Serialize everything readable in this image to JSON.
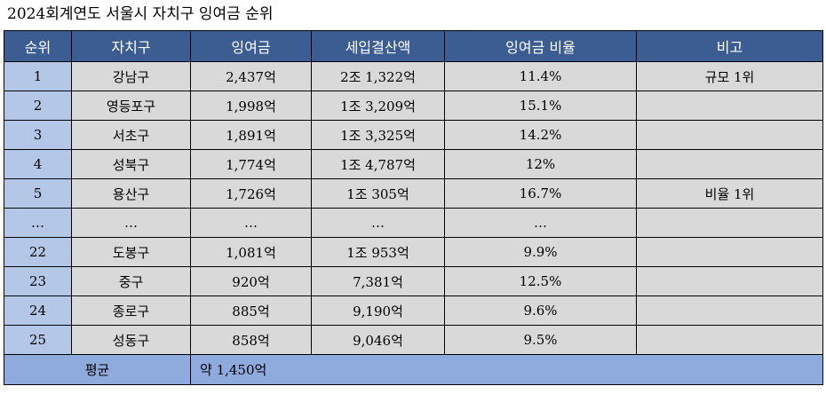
{
  "title": "2024회계연도 서울시 자치구 잉여금 순위",
  "colors": {
    "header_bg": "#3c5d91",
    "rank_bg": "#b4c7e7",
    "cell_bg": "#d9d9d9",
    "footer_bg": "#8faadc"
  },
  "table": {
    "headers": [
      "순위",
      "자치구",
      "잉여금",
      "세입결산액",
      "잉여금 비율",
      "비고"
    ],
    "rows": [
      [
        "1",
        "강남구",
        "2,437억",
        "2조 1,322억",
        "11.4%",
        "규모 1위"
      ],
      [
        "2",
        "영등포구",
        "1,998억",
        "1조 3,209억",
        "15.1%",
        ""
      ],
      [
        "3",
        "서초구",
        "1,891억",
        "1조 3,325억",
        "14.2%",
        ""
      ],
      [
        "4",
        "성북구",
        "1,774억",
        "1조 4,787억",
        "12%",
        ""
      ],
      [
        "5",
        "용산구",
        "1,726억",
        "1조 305억",
        "16.7%",
        "비율 1위"
      ],
      [
        "…",
        "…",
        "…",
        "…",
        "…",
        ""
      ],
      [
        "22",
        "도봉구",
        "1,081억",
        "1조 953억",
        "9.9%",
        ""
      ],
      [
        "23",
        "중구",
        "920억",
        "7,381억",
        "12.5%",
        ""
      ],
      [
        "24",
        "종로구",
        "885억",
        "9,190억",
        "9.6%",
        ""
      ],
      [
        "25",
        "성동구",
        "858억",
        "9,046억",
        "9.5%",
        ""
      ]
    ],
    "footer": {
      "label": "평균",
      "value": "약 1,450억"
    }
  }
}
